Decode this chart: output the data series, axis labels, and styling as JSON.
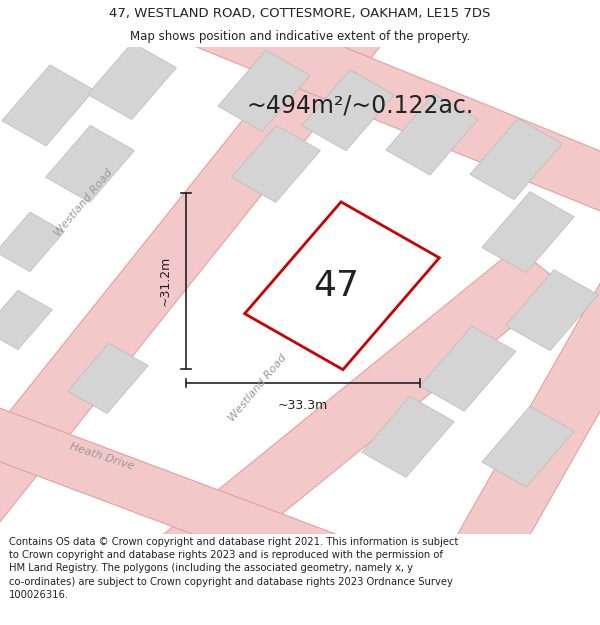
{
  "title_line1": "47, WESTLAND ROAD, COTTESMORE, OAKHAM, LE15 7DS",
  "title_line2": "Map shows position and indicative extent of the property.",
  "area_text": "~494m²/~0.122ac.",
  "property_number": "47",
  "dim_vertical": "~31.2m",
  "dim_horizontal": "~33.3m",
  "footer_text": "Contains OS data © Crown copyright and database right 2021. This information is subject to Crown copyright and database rights 2023 and is reproduced with the permission of HM Land Registry. The polygons (including the associated geometry, namely x, y co-ordinates) are subject to Crown copyright and database rights 2023 Ordnance Survey 100026316.",
  "map_bg": "#ffffff",
  "road_fill": "#f2c8c8",
  "road_edge": "#e8a0a0",
  "building_fill": "#d4d4d4",
  "building_edge": "#bbbbbb",
  "property_color": "#cc0000",
  "dim_color": "#222222",
  "road_label_color": "#999999",
  "text_color": "#222222",
  "title_fontsize": 9.5,
  "subtitle_fontsize": 8.5,
  "area_fontsize": 17,
  "number_fontsize": 26,
  "dim_fontsize": 9,
  "footer_fontsize": 7.2,
  "road_label_fontsize": 8.0
}
